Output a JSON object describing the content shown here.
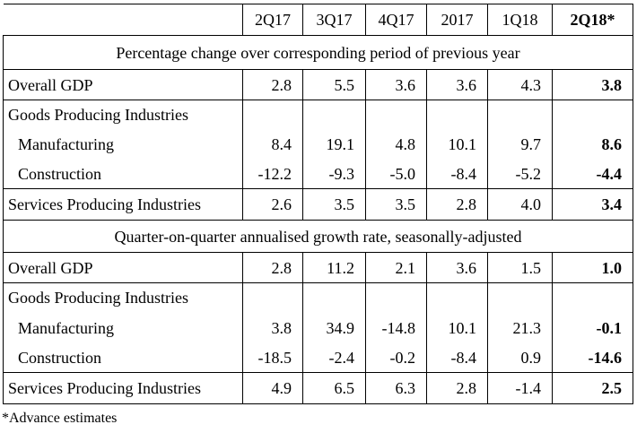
{
  "columns": [
    "2Q17",
    "3Q17",
    "4Q17",
    "2017",
    "1Q18",
    "2Q18*"
  ],
  "sections": [
    {
      "title": "Percentage change over corresponding period of previous year",
      "rows": {
        "overall": {
          "label": "Overall GDP",
          "values": [
            "2.8",
            "5.5",
            "3.6",
            "3.6",
            "4.3",
            "3.8"
          ]
        },
        "goods": {
          "label": "Goods Producing Industries"
        },
        "manufacturing": {
          "label": "Manufacturing",
          "values": [
            "8.4",
            "19.1",
            "4.8",
            "10.1",
            "9.7",
            "8.6"
          ]
        },
        "construction": {
          "label": "Construction",
          "values": [
            "-12.2",
            "-9.3",
            "-5.0",
            "-8.4",
            "-5.2",
            "-4.4"
          ]
        },
        "services": {
          "label": "Services Producing Industries",
          "values": [
            "2.6",
            "3.5",
            "3.5",
            "2.8",
            "4.0",
            "3.4"
          ]
        }
      }
    },
    {
      "title": "Quarter-on-quarter annualised growth rate, seasonally-adjusted",
      "rows": {
        "overall": {
          "label": "Overall GDP",
          "values": [
            "2.8",
            "11.2",
            "2.1",
            "3.6",
            "1.5",
            "1.0"
          ]
        },
        "goods": {
          "label": "Goods Producing Industries"
        },
        "manufacturing": {
          "label": "Manufacturing",
          "values": [
            "3.8",
            "34.9",
            "-14.8",
            "10.1",
            "21.3",
            "-0.1"
          ]
        },
        "construction": {
          "label": "Construction",
          "values": [
            "-18.5",
            "-2.4",
            "-0.2",
            "-8.4",
            "0.9",
            "-14.6"
          ]
        },
        "services": {
          "label": "Services Producing Industries",
          "values": [
            "4.9",
            "6.5",
            "6.3",
            "2.8",
            "-1.4",
            "2.5"
          ]
        }
      }
    }
  ],
  "footnote": "*Advance estimates"
}
